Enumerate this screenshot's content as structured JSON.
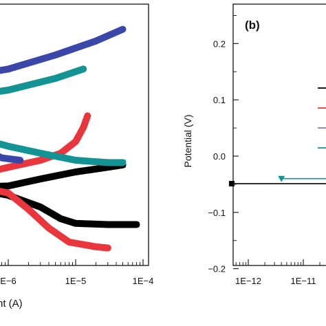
{
  "colors": {
    "black": "#000000",
    "red": "#e8363c",
    "blue": "#3a47a8",
    "teal": "#139393",
    "purple": "#8a76b3"
  },
  "chart_data": [
    {
      "panel": "a",
      "type": "line",
      "title": "",
      "xlabel": "nt (A)",
      "ylabel": "",
      "xscale": "log",
      "xlim": [
        1e-07,
        0.0001
      ],
      "x_ticks": [
        1e-06,
        1e-05,
        0.0001
      ],
      "x_tick_labels": [
        "E−6",
        "1E−5",
        "1E−4"
      ],
      "y_ticks_visible": false,
      "grid": false,
      "legend": "none",
      "series": [
        {
          "color": "black",
          "marker": "square",
          "points": [
            [
              1e-07,
              -0.06
            ],
            [
              3e-07,
              -0.065
            ],
            [
              1e-06,
              -0.06
            ],
            [
              3e-06,
              -0.03
            ],
            [
              1e-05,
              0.0
            ],
            [
              3e-05,
              0.02
            ],
            [
              5e-05,
              0.03
            ]
          ]
        },
        {
          "color": "black",
          "marker": "square",
          "points": [
            [
              1e-07,
              -0.05
            ],
            [
              3e-07,
              -0.07
            ],
            [
              1e-06,
              -0.1
            ],
            [
              3e-06,
              -0.15
            ],
            [
              6e-06,
              -0.2
            ],
            [
              1e-05,
              -0.22
            ],
            [
              3e-05,
              -0.225
            ],
            [
              8e-05,
              -0.225
            ]
          ]
        },
        {
          "color": "red",
          "points": [
            [
              1e-07,
              -0.04
            ],
            [
              3e-07,
              -0.06
            ],
            [
              1e-06,
              -0.09
            ],
            [
              2e-06,
              -0.16
            ],
            [
              4e-06,
              -0.24
            ],
            [
              8e-06,
              -0.3
            ],
            [
              2e-05,
              -0.32
            ],
            [
              3e-05,
              -0.325
            ]
          ]
        },
        {
          "color": "red",
          "points": [
            [
              1e-07,
              -0.02
            ],
            [
              5e-07,
              0.0
            ],
            [
              1e-06,
              0.02
            ],
            [
              3e-06,
              0.05
            ],
            [
              6e-06,
              0.08
            ],
            [
              1e-05,
              0.13
            ],
            [
              1.3e-05,
              0.19
            ],
            [
              1.5e-05,
              0.24
            ]
          ]
        },
        {
          "color": "blue",
          "points": [
            [
              1e-07,
              0.39
            ],
            [
              1e-06,
              0.44
            ],
            [
              5e-06,
              0.5
            ],
            [
              2e-05,
              0.56
            ],
            [
              5e-05,
              0.61
            ]
          ]
        },
        {
          "color": "blue",
          "points": [
            [
              1e-07,
              0.22
            ],
            [
              2e-07,
              0.2
            ],
            [
              3e-07,
              0.14
            ],
            [
              5e-07,
              0.09
            ],
            [
              8e-07,
              0.06
            ],
            [
              1.5e-06,
              0.05
            ]
          ]
        },
        {
          "color": "teal",
          "points": [
            [
              1e-07,
              0.31
            ],
            [
              1e-06,
              0.35
            ],
            [
              5e-06,
              0.4
            ],
            [
              1.3e-05,
              0.44
            ]
          ]
        },
        {
          "color": "teal",
          "marker": "triangle-down",
          "points": [
            [
              1e-07,
              0.2
            ],
            [
              3e-07,
              0.15
            ],
            [
              1e-06,
              0.11
            ],
            [
              3e-06,
              0.08
            ],
            [
              1e-05,
              0.05
            ],
            [
              3e-05,
              0.04
            ],
            [
              5e-05,
              0.04
            ]
          ]
        }
      ]
    },
    {
      "panel": "b",
      "type": "line",
      "title": "",
      "panel_label": "(b)",
      "xlabel": "",
      "ylabel": "Potential (V)",
      "xscale": "log",
      "xlim": [
        5e-13,
        1e-10
      ],
      "ylim": [
        -0.2,
        0.25
      ],
      "x_ticks": [
        1e-12,
        1e-11
      ],
      "x_tick_labels": [
        "1E−12",
        "1E−11"
      ],
      "y_ticks": [
        0.2,
        0.1,
        0.0,
        -0.1,
        -0.2
      ],
      "y_tick_labels": [
        "0.2",
        "0.1",
        "0.0",
        "−0.1",
        "−0.2"
      ],
      "grid": false,
      "legend": "right, cut off",
      "legend_colors": [
        "black",
        "red",
        "purple",
        "teal"
      ],
      "series": [
        {
          "color": "black",
          "marker": "square",
          "points": [
            [
              5e-13,
              -0.049
            ],
            [
              1e-10,
              -0.049
            ]
          ]
        },
        {
          "color": "teal",
          "marker": "triangle-down",
          "points": [
            [
              4e-12,
              -0.04
            ],
            [
              1e-10,
              -0.04
            ]
          ]
        }
      ]
    }
  ]
}
